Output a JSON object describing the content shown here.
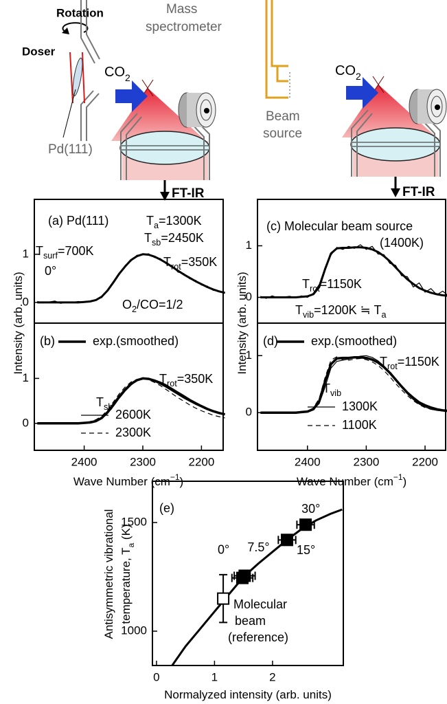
{
  "schematic": {
    "rotation": "Rotation",
    "doser": "Doser",
    "sample": "Pd(111)",
    "mass_spectrometer": [
      "Mass",
      "spectrometer"
    ],
    "beam_source": [
      "Beam",
      "source"
    ],
    "left_gas": [
      "CO",
      {
        "sub": "2"
      }
    ],
    "right_gas": [
      "CO",
      {
        "sub": "2"
      }
    ],
    "left_output": "FT-IR",
    "right_output": "FT-IR"
  },
  "chart_data": [
    {
      "type": "line",
      "ylabel": [
        [
          "Intensity (arb. units)"
        ]
      ],
      "annotations": [
        [
          "(a) Pd(111)"
        ],
        [
          "T",
          {
            "sub": "a"
          },
          "=1300K"
        ],
        [
          "T",
          {
            "sub": "sb"
          },
          "=2450K"
        ],
        [
          "T",
          {
            "sub": "surf"
          },
          "=700K"
        ],
        [
          "0°"
        ],
        [
          "T",
          {
            "sub": "rot"
          },
          "=350K"
        ],
        [
          "O",
          {
            "sub": "2"
          },
          "/CO=1/2"
        ]
      ],
      "x": [
        2480,
        2470,
        2460,
        2450,
        2440,
        2430,
        2420,
        2410,
        2400,
        2390,
        2380,
        2370,
        2360,
        2350,
        2340,
        2330,
        2320,
        2310,
        2300,
        2290,
        2280,
        2270,
        2260,
        2250,
        2240,
        2230,
        2220,
        2210,
        2200,
        2190,
        2180,
        2170,
        2160
      ],
      "xlim": [
        2485,
        2163
      ],
      "ylim": [
        -0.43,
        2.14
      ],
      "yticks": [
        0,
        1
      ],
      "series": [
        {
          "color": "#000",
          "width": 1.2,
          "dash": false,
          "values": [
            0.02,
            -0.01,
            0.01,
            0.03,
            -0.02,
            0.01,
            0.0,
            0.02,
            0.0,
            0.03,
            0.06,
            0.1,
            0.27,
            0.44,
            0.58,
            0.77,
            0.86,
            0.98,
            0.99,
            1.01,
            0.93,
            0.91,
            0.8,
            0.76,
            0.63,
            0.6,
            0.49,
            0.46,
            0.36,
            0.34,
            0.25,
            0.24,
            0.19
          ]
        },
        {
          "color": "#000",
          "width": 3,
          "dash": false,
          "values": [
            0,
            0,
            0,
            0,
            0,
            0,
            0,
            0,
            0.01,
            0.02,
            0.05,
            0.12,
            0.25,
            0.42,
            0.6,
            0.75,
            0.88,
            0.96,
            1.0,
            0.99,
            0.95,
            0.89,
            0.82,
            0.74,
            0.66,
            0.58,
            0.51,
            0.44,
            0.38,
            0.32,
            0.27,
            0.23,
            0.2
          ]
        }
      ]
    },
    {
      "type": "line",
      "xlabel": [
        "Wave Number (cm",
        {
          "sup": "−1"
        },
        ")"
      ],
      "annotations": [
        [
          "(b)"
        ],
        [
          "T",
          {
            "sub": "rot"
          },
          "=350K"
        ],
        [
          "T",
          {
            "sub": "sb"
          }
        ]
      ],
      "x": [
        2480,
        2470,
        2460,
        2450,
        2440,
        2430,
        2420,
        2410,
        2400,
        2390,
        2380,
        2370,
        2360,
        2350,
        2340,
        2330,
        2320,
        2310,
        2300,
        2290,
        2280,
        2270,
        2260,
        2250,
        2240,
        2230,
        2220,
        2210,
        2200,
        2190,
        2180,
        2170,
        2160
      ],
      "xlim": [
        2485,
        2163
      ],
      "ylim": [
        -0.6,
        2.23
      ],
      "yticks": [
        0,
        1
      ],
      "xticks": [
        2400,
        2300,
        2200
      ],
      "series": [
        {
          "name": "exp.(smoothed)",
          "color": "#000",
          "width": 3.5,
          "dash": false,
          "values": [
            0,
            0,
            0,
            0,
            0,
            0,
            0,
            0,
            0.01,
            0.02,
            0.05,
            0.12,
            0.25,
            0.42,
            0.6,
            0.75,
            0.88,
            0.96,
            1.0,
            0.99,
            0.95,
            0.89,
            0.82,
            0.74,
            0.66,
            0.58,
            0.51,
            0.44,
            0.38,
            0.32,
            0.27,
            0.23,
            0.2
          ]
        },
        {
          "name": "2600K",
          "color": "#000",
          "width": 1.2,
          "dash": false,
          "values": [
            0,
            0,
            0,
            0,
            0,
            0,
            0,
            0,
            0.01,
            0.02,
            0.05,
            0.11,
            0.22,
            0.38,
            0.56,
            0.72,
            0.85,
            0.95,
            1.0,
            1.0,
            0.97,
            0.92,
            0.86,
            0.78,
            0.7,
            0.62,
            0.54,
            0.47,
            0.4,
            0.34,
            0.28,
            0.23,
            0.19
          ]
        },
        {
          "name": "2300K",
          "color": "#000",
          "width": 1.2,
          "dash": true,
          "values": [
            0,
            0,
            0,
            0,
            0,
            0,
            0,
            0,
            0.02,
            0.04,
            0.08,
            0.16,
            0.3,
            0.48,
            0.66,
            0.81,
            0.92,
            0.98,
            1.0,
            0.97,
            0.91,
            0.84,
            0.75,
            0.66,
            0.57,
            0.49,
            0.41,
            0.34,
            0.28,
            0.23,
            0.18,
            0.15,
            0.12
          ]
        }
      ]
    },
    {
      "type": "line",
      "ylabel": [
        [
          "Intensity (arb. units)"
        ]
      ],
      "annotations": [
        [
          "(c) Molecular beam source"
        ],
        [
          "(1400K)"
        ],
        [
          "T",
          {
            "sub": "rot"
          },
          "=1150K"
        ],
        [
          "T",
          {
            "sub": "vib"
          },
          "=1200K ≒ T",
          {
            "sub": "a"
          }
        ]
      ],
      "x": [
        2480,
        2470,
        2460,
        2450,
        2440,
        2430,
        2420,
        2410,
        2400,
        2390,
        2380,
        2370,
        2360,
        2350,
        2340,
        2330,
        2320,
        2310,
        2300,
        2290,
        2280,
        2270,
        2260,
        2250,
        2240,
        2230,
        2220,
        2210,
        2200,
        2190,
        2180,
        2170,
        2160
      ],
      "xlim": [
        2485,
        2165
      ],
      "ylim": [
        -0.5,
        1.9
      ],
      "yticks": [
        0,
        1
      ],
      "series": [
        {
          "color": "#000",
          "width": 1.2,
          "dash": false,
          "values": [
            0.02,
            -0.02,
            0.03,
            -0.01,
            0.01,
            0.02,
            -0.01,
            0.03,
            0.0,
            0.08,
            0.25,
            0.58,
            0.82,
            0.97,
            0.93,
            0.99,
            0.95,
            1.02,
            0.93,
            0.99,
            0.84,
            0.83,
            0.66,
            0.62,
            0.42,
            0.4,
            0.2,
            0.28,
            0.1,
            0.17,
            0.05,
            0.12,
            0.03
          ]
        },
        {
          "color": "#000",
          "width": 3,
          "dash": false,
          "values": [
            0,
            0,
            0,
            0,
            0,
            0,
            0,
            0.01,
            0.02,
            0.06,
            0.2,
            0.55,
            0.85,
            0.95,
            0.96,
            0.96,
            0.97,
            0.97,
            0.96,
            0.93,
            0.88,
            0.8,
            0.7,
            0.58,
            0.46,
            0.35,
            0.26,
            0.18,
            0.13,
            0.09,
            0.06,
            0.04,
            0.03
          ]
        }
      ]
    },
    {
      "type": "line",
      "xlabel": [
        "Wave Number (cm",
        {
          "sup": "−1"
        },
        ")"
      ],
      "annotations": [
        [
          "(d)"
        ],
        [
          "T",
          {
            "sub": "rot"
          },
          "=1150K"
        ],
        [
          "T",
          {
            "sub": "vib"
          }
        ]
      ],
      "x": [
        2480,
        2470,
        2460,
        2450,
        2440,
        2430,
        2420,
        2410,
        2400,
        2390,
        2380,
        2370,
        2360,
        2350,
        2340,
        2330,
        2320,
        2310,
        2300,
        2290,
        2280,
        2270,
        2260,
        2250,
        2240,
        2230,
        2220,
        2210,
        2200,
        2190,
        2180,
        2170,
        2160
      ],
      "xlim": [
        2485,
        2165
      ],
      "ylim": [
        -0.66,
        1.57
      ],
      "yticks": [
        0,
        1
      ],
      "xticks": [
        2400,
        2300,
        2200
      ],
      "series": [
        {
          "name": "exp.(smoothed)",
          "color": "#000",
          "width": 3.5,
          "dash": false,
          "values": [
            0,
            0,
            0,
            0,
            0,
            0,
            0,
            0.01,
            0.02,
            0.06,
            0.2,
            0.55,
            0.85,
            0.95,
            0.96,
            0.96,
            0.97,
            0.97,
            0.96,
            0.93,
            0.88,
            0.8,
            0.7,
            0.58,
            0.46,
            0.35,
            0.26,
            0.18,
            0.13,
            0.09,
            0.06,
            0.04,
            0.03
          ]
        },
        {
          "name": "1300K",
          "color": "#000",
          "width": 1.2,
          "dash": false,
          "values": [
            0,
            0,
            0,
            0,
            0,
            0,
            0,
            0.01,
            0.02,
            0.05,
            0.16,
            0.45,
            0.78,
            0.9,
            0.92,
            0.94,
            0.97,
            0.99,
            1.0,
            0.97,
            0.91,
            0.82,
            0.71,
            0.58,
            0.45,
            0.33,
            0.23,
            0.15,
            0.1,
            0.06,
            0.04,
            0.03,
            0.02
          ]
        },
        {
          "name": "1100K",
          "color": "#000",
          "width": 1.2,
          "dash": true,
          "values": [
            0,
            0,
            0,
            0,
            0,
            0,
            0,
            0.01,
            0.03,
            0.08,
            0.25,
            0.62,
            0.92,
            0.98,
            0.93,
            0.92,
            0.94,
            0.95,
            0.93,
            0.89,
            0.83,
            0.74,
            0.63,
            0.51,
            0.4,
            0.3,
            0.21,
            0.14,
            0.09,
            0.06,
            0.04,
            0.03,
            0.02
          ]
        }
      ]
    },
    {
      "type": "scatter",
      "ylabel": [
        [
          "Antisymmetric vibrational"
        ],
        [
          "temperature, T",
          {
            "sub": "a"
          },
          " (K)"
        ]
      ],
      "xlabel": [
        "Normalyzed intensity (arb. units)"
      ],
      "annotations": [
        [
          "(e)"
        ],
        [
          "Molecular"
        ],
        [
          "beam"
        ],
        [
          "(reference)"
        ]
      ],
      "xlim": [
        -0.07,
        3.22
      ],
      "ylim": [
        842,
        1690
      ],
      "xticks": [
        0,
        1,
        2
      ],
      "yticks": [
        1000,
        1500
      ],
      "series": [
        {
          "style": "line",
          "color": "#000",
          "x": [
            0.27,
            0.5,
            0.75,
            1.0,
            1.25,
            1.5,
            1.75,
            2.0,
            2.25,
            2.5,
            2.75,
            3.0,
            3.2
          ],
          "values": [
            842,
            930,
            1010,
            1090,
            1170,
            1250,
            1310,
            1365,
            1420,
            1470,
            1510,
            1540,
            1560
          ]
        },
        {
          "style": "open-square",
          "color": "#000",
          "x": [
            1.15
          ],
          "values": [
            1150
          ],
          "yerr": [
            110
          ]
        },
        {
          "style": "filled-square",
          "color": "#000",
          "x": [
            1.48,
            1.52,
            2.25,
            2.57
          ],
          "values": [
            1245,
            1255,
            1420,
            1490
          ],
          "xerr": [
            0.18,
            0.18,
            0.15,
            0.15
          ],
          "labels": [
            "0°",
            "7.5°",
            "15°",
            "30°"
          ]
        }
      ]
    }
  ]
}
